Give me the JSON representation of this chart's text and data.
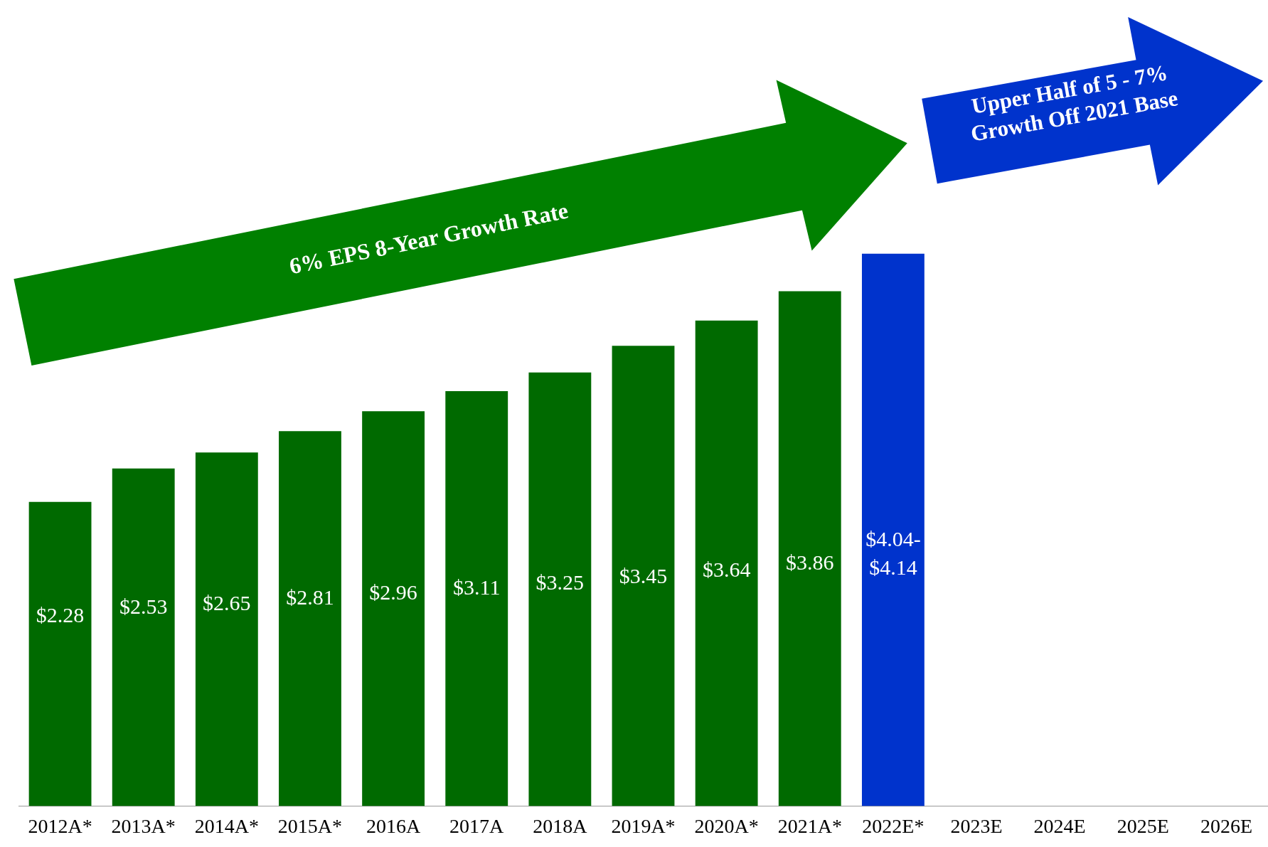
{
  "chart_data": {
    "type": "bar",
    "categories": [
      "2012A*",
      "2013A*",
      "2014A*",
      "2015A*",
      "2016A",
      "2017A",
      "2018A",
      "2019A*",
      "2020A*",
      "2021A*",
      "2022E*",
      "2023E",
      "2024E",
      "2025E",
      "2026E"
    ],
    "values": [
      2.28,
      2.53,
      2.65,
      2.81,
      2.96,
      3.11,
      3.25,
      3.45,
      3.64,
      3.86,
      4.14,
      null,
      null,
      null,
      null
    ],
    "colors": [
      "#006a00",
      "#006a00",
      "#006a00",
      "#006a00",
      "#006a00",
      "#006a00",
      "#006a00",
      "#006a00",
      "#006a00",
      "#006a00",
      "#0033cc",
      null,
      null,
      null,
      null
    ],
    "value_labels": [
      "$2.28",
      "$2.53",
      "$2.65",
      "$2.81",
      "$2.96",
      "$3.11",
      "$3.25",
      "$3.45",
      "$3.64",
      "$3.86",
      "$4.04-$4.14",
      null,
      null,
      null,
      null
    ],
    "tick_labels": "x",
    "grid": false,
    "legend": false,
    "annotations": [
      "6% EPS 8-Year Growth Rate",
      "Upper Half  of 5 - 7%\nGrowth Off 2021 Base"
    ]
  }
}
